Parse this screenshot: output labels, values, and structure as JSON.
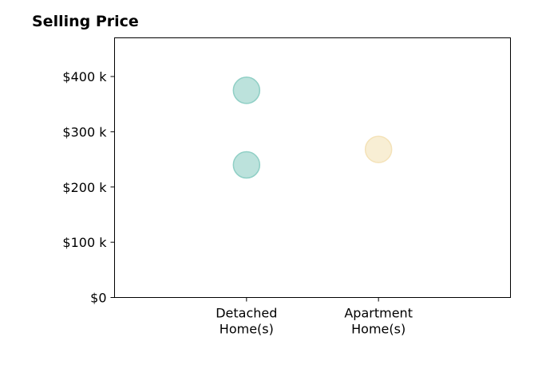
{
  "chart_data": {
    "type": "scatter",
    "title": "Selling Price",
    "xlabel": "",
    "ylabel": "",
    "categories": [
      [
        "Detached",
        "Home(s)"
      ],
      [
        "Apartment",
        "Home(s)"
      ]
    ],
    "x_range": [
      0,
      3
    ],
    "category_positions": [
      1,
      2
    ],
    "ylim": [
      0,
      470000
    ],
    "yticks": [
      {
        "value": 0,
        "label": "$0"
      },
      {
        "value": 100000,
        "label": "$100 k"
      },
      {
        "value": 200000,
        "label": "$200 k"
      },
      {
        "value": 300000,
        "label": "$300 k"
      },
      {
        "value": 400000,
        "label": "$400 k"
      }
    ],
    "grid": false,
    "legend": "none",
    "points": [
      {
        "category": "Detached Home(s)",
        "x": 1,
        "y": 375000,
        "color": "#8fcfc5"
      },
      {
        "category": "Detached Home(s)",
        "x": 1,
        "y": 240000,
        "color": "#8fcfc5"
      },
      {
        "category": "Apartment Home(s)",
        "x": 2,
        "y": 268000,
        "color": "#f4e2b8"
      }
    ]
  }
}
